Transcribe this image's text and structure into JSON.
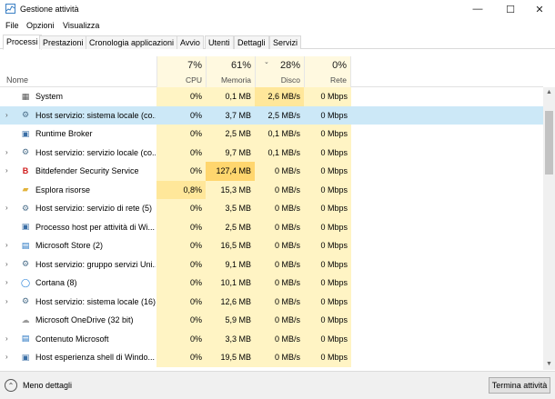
{
  "window": {
    "title": "Gestione attività",
    "minimize": "—",
    "maximize": "☐",
    "close": "✕"
  },
  "menu": [
    "File",
    "Opzioni",
    "Visualizza"
  ],
  "tabs": [
    "Processi",
    "Prestazioni",
    "Cronologia applicazioni",
    "Avvio",
    "Utenti",
    "Dettagli",
    "Servizi"
  ],
  "header": {
    "name": "Nome",
    "cpu": {
      "pct": "7%",
      "label": "CPU"
    },
    "memory": {
      "pct": "61%",
      "label": "Memoria"
    },
    "disk": {
      "pct": "28%",
      "label": "Disco"
    },
    "network": {
      "pct": "0%",
      "label": "Rete"
    }
  },
  "processes": [
    {
      "name": "System",
      "expand": "",
      "icon": "system-icon",
      "cpu": "0%",
      "mem": "0,1 MB",
      "disk": "2,6 MB/s",
      "net": "0 Mbps"
    },
    {
      "name": "Host servizio: sistema locale (co...",
      "expand": "›",
      "icon": "gear-icon",
      "cpu": "0%",
      "mem": "3,7 MB",
      "disk": "2,5 MB/s",
      "net": "0 Mbps",
      "selected": true
    },
    {
      "name": "Runtime Broker",
      "expand": "",
      "icon": "window-icon",
      "cpu": "0%",
      "mem": "2,5 MB",
      "disk": "0,1 MB/s",
      "net": "0 Mbps"
    },
    {
      "name": "Host servizio: servizio locale (co...",
      "expand": "›",
      "icon": "gear-icon",
      "cpu": "0%",
      "mem": "9,7 MB",
      "disk": "0,1 MB/s",
      "net": "0 Mbps"
    },
    {
      "name": "Bitdefender Security Service",
      "expand": "›",
      "icon": "bitdefender-icon",
      "cpu": "0%",
      "mem": "127,4 MB",
      "disk": "0 MB/s",
      "net": "0 Mbps"
    },
    {
      "name": "Esplora risorse",
      "expand": "",
      "icon": "folder-icon",
      "cpu": "0,8%",
      "mem": "15,3 MB",
      "disk": "0 MB/s",
      "net": "0 Mbps"
    },
    {
      "name": "Host servizio: servizio di rete (5)",
      "expand": "›",
      "icon": "gear-icon",
      "cpu": "0%",
      "mem": "3,5 MB",
      "disk": "0 MB/s",
      "net": "0 Mbps"
    },
    {
      "name": "Processo host per attività di Wi...",
      "expand": "",
      "icon": "window-icon",
      "cpu": "0%",
      "mem": "2,5 MB",
      "disk": "0 MB/s",
      "net": "0 Mbps"
    },
    {
      "name": "Microsoft Store (2)",
      "expand": "›",
      "icon": "store-icon",
      "cpu": "0%",
      "mem": "16,5 MB",
      "disk": "0 MB/s",
      "net": "0 Mbps"
    },
    {
      "name": "Host servizio: gruppo servizi Uni...",
      "expand": "›",
      "icon": "gear-icon",
      "cpu": "0%",
      "mem": "9,1 MB",
      "disk": "0 MB/s",
      "net": "0 Mbps"
    },
    {
      "name": "Cortana (8)",
      "expand": "›",
      "icon": "cortana-icon",
      "cpu": "0%",
      "mem": "10,1 MB",
      "disk": "0 MB/s",
      "net": "0 Mbps"
    },
    {
      "name": "Host servizio: sistema locale (16)",
      "expand": "›",
      "icon": "gear-icon",
      "cpu": "0%",
      "mem": "12,6 MB",
      "disk": "0 MB/s",
      "net": "0 Mbps"
    },
    {
      "name": "Microsoft OneDrive (32 bit)",
      "expand": "",
      "icon": "cloud-icon",
      "cpu": "0%",
      "mem": "5,9 MB",
      "disk": "0 MB/s",
      "net": "0 Mbps"
    },
    {
      "name": "Contenuto Microsoft",
      "expand": "›",
      "icon": "store-icon",
      "cpu": "0%",
      "mem": "3,3 MB",
      "disk": "0 MB/s",
      "net": "0 Mbps"
    },
    {
      "name": "Host esperienza shell di Windo...",
      "expand": "›",
      "icon": "window-icon",
      "cpu": "0%",
      "mem": "19,5 MB",
      "disk": "0 MB/s",
      "net": "0 Mbps"
    }
  ],
  "footer": {
    "fewer_details": "Meno dettagli",
    "end_task": "Termina attività"
  },
  "colors": {
    "heat_light": "#fff4c4",
    "heat_medium": "#ffe79a",
    "heat_strong": "#ffd66e",
    "heat_col_header": "#fff9e0",
    "selected": "#cce8f7"
  }
}
